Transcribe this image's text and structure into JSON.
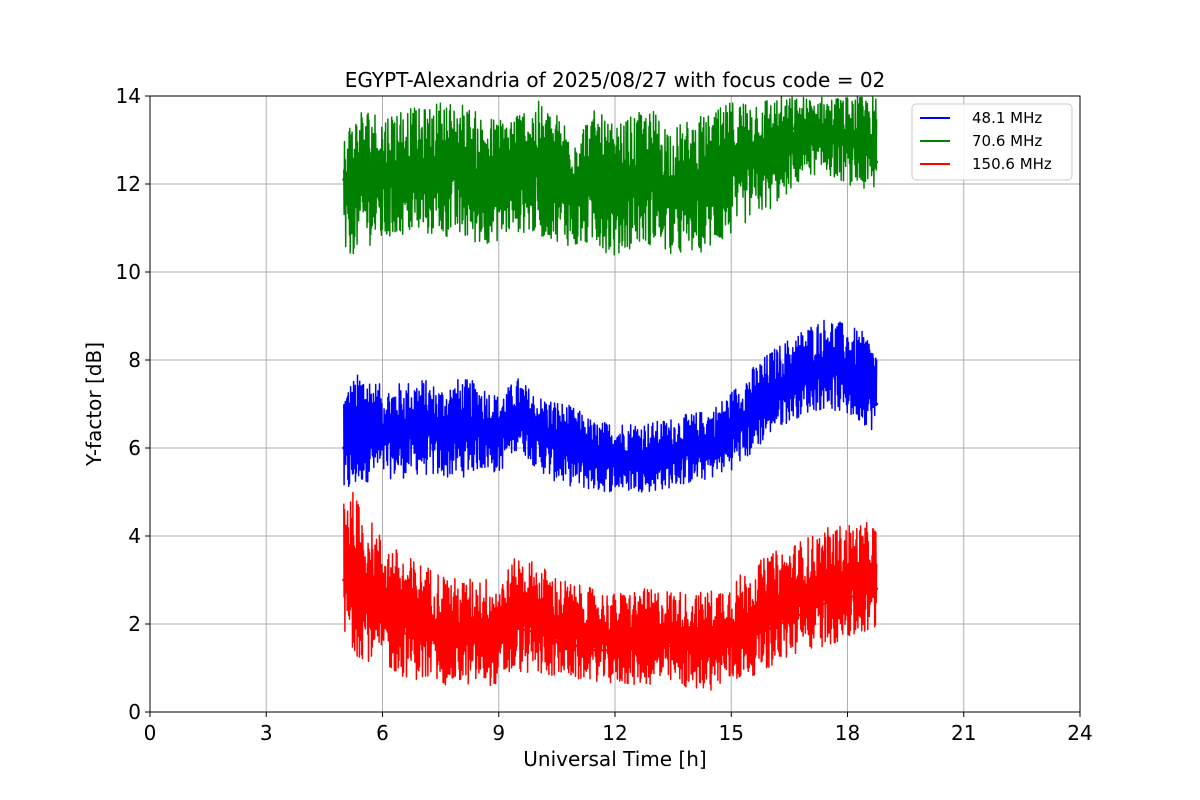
{
  "chart_data": {
    "type": "line",
    "title": "EGYPT-Alexandria of 2025/08/27 with focus code = 02",
    "xlabel": "Universal Time [h]",
    "ylabel": "Y-factor [dB]",
    "xlim": [
      0,
      24
    ],
    "ylim": [
      0,
      14
    ],
    "xticks": [
      0,
      3,
      6,
      9,
      12,
      15,
      18,
      21,
      24
    ],
    "yticks": [
      0,
      2,
      4,
      6,
      8,
      10,
      12,
      14
    ],
    "grid": true,
    "legend_position": "top-right",
    "series": [
      {
        "name": "48.1 MHz",
        "color": "#0000ff",
        "x": [
          5.0,
          5.5,
          6.0,
          6.5,
          7.0,
          7.5,
          8.0,
          8.5,
          9.0,
          9.5,
          10.0,
          10.5,
          11.0,
          11.5,
          12.0,
          12.5,
          13.0,
          13.5,
          14.0,
          14.5,
          15.0,
          15.5,
          16.0,
          16.5,
          17.0,
          17.5,
          18.0,
          18.5,
          18.75
        ],
        "values": [
          6.0,
          6.4,
          6.3,
          6.3,
          6.4,
          6.2,
          6.3,
          6.4,
          6.2,
          6.8,
          6.2,
          6.1,
          6.0,
          5.8,
          5.8,
          5.8,
          5.8,
          5.9,
          6.0,
          6.0,
          6.3,
          6.8,
          7.2,
          7.4,
          7.6,
          7.8,
          7.6,
          7.4,
          7.0
        ],
        "band_low": [
          4.8,
          5.2,
          5.3,
          5.3,
          5.4,
          5.3,
          5.3,
          5.5,
          5.4,
          6.0,
          5.5,
          5.2,
          5.1,
          5.0,
          5.0,
          5.0,
          5.0,
          5.1,
          5.2,
          5.3,
          5.5,
          5.8,
          6.3,
          6.6,
          6.8,
          6.9,
          6.7,
          6.5,
          6.3
        ],
        "band_high": [
          7.4,
          7.8,
          7.4,
          7.5,
          7.6,
          7.4,
          7.6,
          7.5,
          7.2,
          7.6,
          7.2,
          7.1,
          6.9,
          6.6,
          6.6,
          6.6,
          6.6,
          6.7,
          6.8,
          6.9,
          7.3,
          7.8,
          8.2,
          8.5,
          8.8,
          9.0,
          8.8,
          8.6,
          8.2
        ]
      },
      {
        "name": "70.6 MHz",
        "color": "#008000",
        "x": [
          5.0,
          5.5,
          6.0,
          6.5,
          7.0,
          7.5,
          8.0,
          8.5,
          9.0,
          9.5,
          10.0,
          10.5,
          11.0,
          11.5,
          12.0,
          12.5,
          13.0,
          13.5,
          14.0,
          14.5,
          15.0,
          15.5,
          16.0,
          16.5,
          17.0,
          17.5,
          18.0,
          18.5,
          18.75
        ],
        "values": [
          12.1,
          12.2,
          12.1,
          12.2,
          12.1,
          12.3,
          12.3,
          12.1,
          11.9,
          12.1,
          12.3,
          12.1,
          11.8,
          12.0,
          11.7,
          12.0,
          12.1,
          11.7,
          11.8,
          11.9,
          12.3,
          12.6,
          12.8,
          13.2,
          13.5,
          13.3,
          13.0,
          12.8,
          12.5
        ],
        "band_low": [
          10.2,
          10.6,
          10.6,
          10.8,
          10.8,
          10.8,
          10.7,
          10.6,
          10.7,
          10.9,
          10.8,
          10.7,
          10.5,
          10.6,
          10.3,
          10.6,
          10.6,
          10.3,
          10.4,
          10.5,
          10.8,
          11.2,
          11.4,
          11.8,
          12.2,
          12.2,
          12.0,
          11.8,
          11.7
        ],
        "band_high": [
          13.3,
          13.8,
          13.6,
          13.8,
          13.7,
          13.9,
          13.9,
          13.6,
          13.5,
          13.7,
          13.9,
          13.6,
          13.3,
          13.7,
          13.3,
          13.6,
          13.7,
          13.3,
          13.5,
          13.6,
          13.9,
          14.0,
          14.0,
          14.0,
          14.0,
          14.0,
          14.0,
          14.0,
          14.0
        ]
      },
      {
        "name": "150.6 MHz",
        "color": "#ff0000",
        "x": [
          5.0,
          5.5,
          6.0,
          6.5,
          7.0,
          7.5,
          8.0,
          8.5,
          9.0,
          9.5,
          10.0,
          10.5,
          11.0,
          11.5,
          12.0,
          12.5,
          13.0,
          13.5,
          14.0,
          14.5,
          15.0,
          15.5,
          16.0,
          16.5,
          17.0,
          17.5,
          18.0,
          18.5,
          18.75
        ],
        "values": [
          3.0,
          2.6,
          2.1,
          1.8,
          1.7,
          1.6,
          1.5,
          1.6,
          1.5,
          1.9,
          1.8,
          1.6,
          1.5,
          1.4,
          1.4,
          1.5,
          1.5,
          1.5,
          1.4,
          1.4,
          1.5,
          1.7,
          1.9,
          2.1,
          2.3,
          2.5,
          2.6,
          2.7,
          2.8
        ],
        "band_low": [
          1.4,
          1.2,
          1.0,
          0.8,
          0.7,
          0.6,
          0.6,
          0.6,
          0.6,
          0.9,
          0.8,
          0.8,
          0.7,
          0.7,
          0.6,
          0.6,
          0.6,
          0.6,
          0.5,
          0.5,
          0.6,
          0.8,
          1.0,
          1.2,
          1.4,
          1.5,
          1.6,
          1.7,
          1.8
        ],
        "band_high": [
          5.4,
          4.6,
          4.0,
          3.6,
          3.4,
          3.2,
          3.0,
          3.1,
          3.0,
          3.6,
          3.4,
          3.1,
          2.9,
          2.8,
          2.7,
          2.8,
          2.8,
          2.8,
          2.7,
          2.8,
          3.0,
          3.3,
          3.6,
          3.8,
          4.0,
          4.2,
          4.3,
          4.3,
          4.3
        ]
      }
    ]
  }
}
